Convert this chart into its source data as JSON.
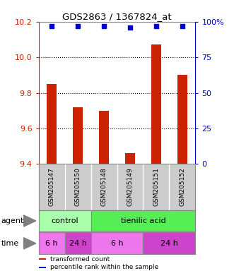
{
  "title": "GDS2863 / 1367824_at",
  "samples": [
    "GSM205147",
    "GSM205150",
    "GSM205148",
    "GSM205149",
    "GSM205151",
    "GSM205152"
  ],
  "bar_values": [
    9.85,
    9.72,
    9.7,
    9.46,
    10.07,
    9.9
  ],
  "percentile_values": [
    97,
    97,
    97,
    96,
    97,
    97
  ],
  "bar_color": "#cc2200",
  "percentile_color": "#0000cc",
  "ylim_left": [
    9.4,
    10.2
  ],
  "ylim_right": [
    0,
    100
  ],
  "yticks_left": [
    9.4,
    9.6,
    9.8,
    10.0,
    10.2
  ],
  "yticks_right": [
    0,
    25,
    50,
    75,
    100
  ],
  "grid_lines": [
    9.6,
    9.8,
    10.0
  ],
  "agent_labels": [
    {
      "text": "control",
      "start": 0,
      "end": 2,
      "color": "#aaffaa"
    },
    {
      "text": "tienilic acid",
      "start": 2,
      "end": 6,
      "color": "#55ee55"
    }
  ],
  "time_labels": [
    {
      "text": "6 h",
      "start": 0,
      "end": 1,
      "color": "#ee77ee"
    },
    {
      "text": "24 h",
      "start": 1,
      "end": 2,
      "color": "#cc44cc"
    },
    {
      "text": "6 h",
      "start": 2,
      "end": 4,
      "color": "#ee77ee"
    },
    {
      "text": "24 h",
      "start": 4,
      "end": 6,
      "color": "#cc44cc"
    }
  ],
  "legend_items": [
    {
      "label": "transformed count",
      "color": "#cc2200"
    },
    {
      "label": "percentile rank within the sample",
      "color": "#0000cc"
    }
  ],
  "bar_width": 0.4,
  "left_axis_color": "#cc2200",
  "right_axis_color": "#0000cc",
  "background_color": "#ffffff",
  "sample_bg_color": "#cccccc",
  "sample_divider_color": "#aaaaaa"
}
